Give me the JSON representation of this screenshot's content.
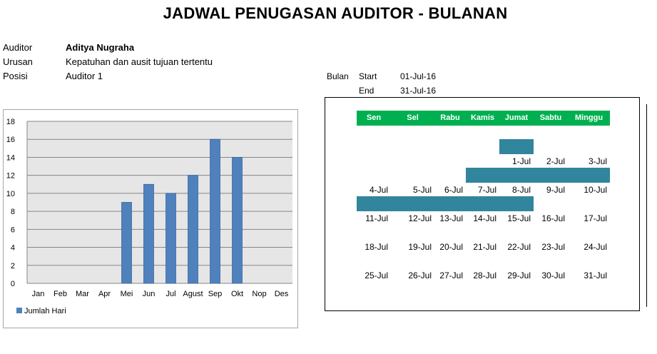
{
  "title": "JADWAL PENUGASAN AUDITOR - BULANAN",
  "info": {
    "auditor_label": "Auditor",
    "auditor_value": "Aditya Nugraha",
    "urusan_label": "Urusan",
    "urusan_value": "Kepatuhan dan ausit tujuan tertentu",
    "posisi_label": "Posisi",
    "posisi_value": "Auditor 1"
  },
  "period": {
    "bulan_label": "Bulan",
    "start_label": "Start",
    "start_value": "01-Jul-16",
    "end_label": "End",
    "end_value": "31-Jul-16"
  },
  "chart_data": {
    "type": "bar",
    "categories": [
      "Jan",
      "Feb",
      "Mar",
      "Apr",
      "Mei",
      "Jun",
      "Jul",
      "Agust",
      "Sep",
      "Okt",
      "Nop",
      "Des"
    ],
    "series": [
      {
        "name": "Jumlah Hari",
        "values": [
          0,
          0,
          0,
          0,
          9,
          11,
          10,
          12,
          16,
          14,
          0,
          0
        ],
        "color": "#4f81bd"
      }
    ],
    "ylim": [
      0,
      18
    ],
    "yticks": [
      0,
      2,
      4,
      6,
      8,
      10,
      12,
      14,
      16,
      18
    ],
    "grid": true,
    "legend": "bottom-left",
    "plot_background": "#e6e6e6"
  },
  "calendar": {
    "header_color": "#00b050",
    "bar_color": "#31859c",
    "days": [
      "Sen",
      "Sel",
      "Rabu",
      "Kamis",
      "Jumat",
      "Sabtu",
      "Minggu"
    ],
    "weeks": [
      [
        "",
        "",
        "",
        "",
        "1-Jul",
        "2-Jul",
        "3-Jul"
      ],
      [
        "4-Jul",
        "5-Jul",
        "6-Jul",
        "7-Jul",
        "8-Jul",
        "9-Jul",
        "10-Jul"
      ],
      [
        "11-Jul",
        "12-Jul",
        "13-Jul",
        "14-Jul",
        "15-Jul",
        "16-Jul",
        "17-Jul"
      ],
      [
        "18-Jul",
        "19-Jul",
        "20-Jul",
        "21-Jul",
        "22-Jul",
        "23-Jul",
        "24-Jul"
      ],
      [
        "25-Jul",
        "26-Jul",
        "27-Jul",
        "28-Jul",
        "29-Jul",
        "30-Jul",
        "31-Jul"
      ]
    ],
    "assignments": [
      {
        "week": 0,
        "from_day": 4,
        "to_day": 4
      },
      {
        "week": 1,
        "from_day": 3,
        "to_day": 6
      },
      {
        "week": 2,
        "from_day": 0,
        "to_day": 4
      }
    ]
  }
}
